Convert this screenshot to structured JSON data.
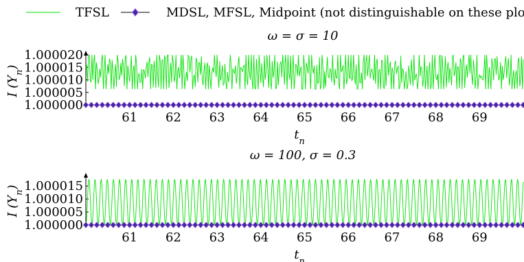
{
  "legend": {
    "entries": [
      {
        "label": "TFSL",
        "color": "#00e000",
        "marker": "none"
      },
      {
        "label": "MDSL, MFSL, Midpoint (not distinguishable on these plots)",
        "color": "#000000",
        "marker_color": "#7b2fbe",
        "marker": "diamond"
      }
    ]
  },
  "colors": {
    "tfsl": "#00e000",
    "baseline": "#000000",
    "marker_fill": "#3a2aa0",
    "marker_edge": "#8b3fd0"
  },
  "chart_data": [
    {
      "type": "line",
      "title": "ω = σ = 10",
      "xlabel": "t_n",
      "ylabel": "I (Y_n)",
      "xlim": [
        60.0,
        70.0
      ],
      "ylim": [
        1.0,
        1.00002
      ],
      "x_ticks": [
        61,
        62,
        63,
        64,
        65,
        66,
        67,
        68,
        69
      ],
      "y_ticks": [
        "1.000000",
        "1.000005",
        "1.000010",
        "1.000015",
        "1.000020"
      ],
      "y_tick_values": [
        1.0,
        1.000005,
        1.00001,
        1.000015,
        1.00002
      ],
      "series": [
        {
          "name": "TFSL",
          "kind": "noisy_oscillation",
          "min": 1.0000063,
          "max": 1.00002,
          "mean": 1.000013,
          "samples": 500,
          "period": 0.125
        },
        {
          "name": "MDSL, MFSL, Midpoint (not distinguishable on these plots)",
          "kind": "constant",
          "value": 1.0,
          "marker_spacing": 0.125
        }
      ]
    },
    {
      "type": "line",
      "title": "ω = 100, σ = 0.3",
      "xlabel": "t_n",
      "ylabel": "I (Y_n)",
      "xlim": [
        60.0,
        70.0
      ],
      "ylim": [
        1.0,
        1.0000185
      ],
      "x_ticks": [
        61,
        62,
        63,
        64,
        65,
        66,
        67,
        68,
        69
      ],
      "y_ticks": [
        "1.000000",
        "1.000005",
        "1.000010",
        "1.000015"
      ],
      "y_tick_values": [
        1.0,
        1.000005,
        1.00001,
        1.000015
      ],
      "series": [
        {
          "name": "TFSL",
          "kind": "regular_oscillation",
          "min": 1.0,
          "max": 1.0000175,
          "period": 0.14
        },
        {
          "name": "MDSL, MFSL, Midpoint (not distinguishable on these plots)",
          "kind": "constant",
          "value": 1.0,
          "marker_spacing": 0.125
        }
      ]
    }
  ]
}
